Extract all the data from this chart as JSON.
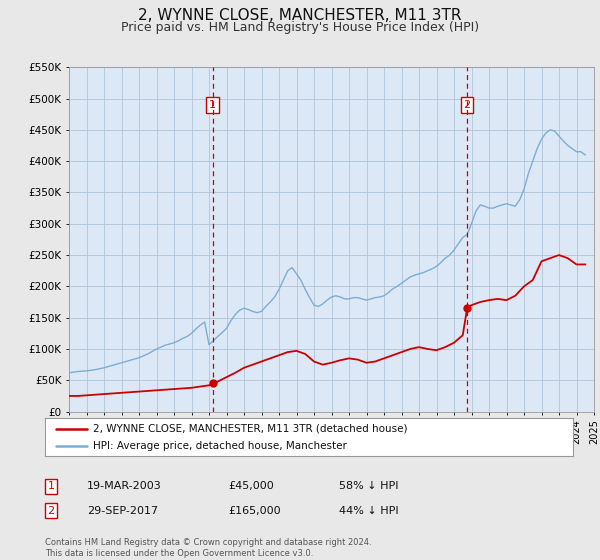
{
  "title": "2, WYNNE CLOSE, MANCHESTER, M11 3TR",
  "subtitle": "Price paid vs. HM Land Registry's House Price Index (HPI)",
  "title_fontsize": 11,
  "subtitle_fontsize": 9,
  "background_color": "#e8e8e8",
  "plot_bg_color": "#dce8f5",
  "grid_color": "#b0c4d8",
  "hpi_color": "#7aaed6",
  "price_color": "#cc0000",
  "ylim": [
    0,
    550000
  ],
  "yticks": [
    0,
    50000,
    100000,
    150000,
    200000,
    250000,
    300000,
    350000,
    400000,
    450000,
    500000,
    550000
  ],
  "ytick_labels": [
    "£0",
    "£50K",
    "£100K",
    "£150K",
    "£200K",
    "£250K",
    "£300K",
    "£350K",
    "£400K",
    "£450K",
    "£500K",
    "£550K"
  ],
  "xmin": 1995,
  "xmax": 2025,
  "vline1_x": 2003.21,
  "vline2_x": 2017.75,
  "sale1_y": 45000,
  "sale2_y": 165000,
  "sale1_date": "19-MAR-2003",
  "sale1_price": "£45,000",
  "sale1_hpi": "58% ↓ HPI",
  "sale2_date": "29-SEP-2017",
  "sale2_price": "£165,000",
  "sale2_hpi": "44% ↓ HPI",
  "legend_line1": "2, WYNNE CLOSE, MANCHESTER, M11 3TR (detached house)",
  "legend_line2": "HPI: Average price, detached house, Manchester",
  "footer": "Contains HM Land Registry data © Crown copyright and database right 2024.\nThis data is licensed under the Open Government Licence v3.0.",
  "hpi_data_x": [
    1995.0,
    1995.25,
    1995.5,
    1995.75,
    1996.0,
    1996.25,
    1996.5,
    1996.75,
    1997.0,
    1997.25,
    1997.5,
    1997.75,
    1998.0,
    1998.25,
    1998.5,
    1998.75,
    1999.0,
    1999.25,
    1999.5,
    1999.75,
    2000.0,
    2000.25,
    2000.5,
    2000.75,
    2001.0,
    2001.25,
    2001.5,
    2001.75,
    2002.0,
    2002.25,
    2002.5,
    2002.75,
    2003.0,
    2003.25,
    2003.5,
    2003.75,
    2004.0,
    2004.25,
    2004.5,
    2004.75,
    2005.0,
    2005.25,
    2005.5,
    2005.75,
    2006.0,
    2006.25,
    2006.5,
    2006.75,
    2007.0,
    2007.25,
    2007.5,
    2007.75,
    2008.0,
    2008.25,
    2008.5,
    2008.75,
    2009.0,
    2009.25,
    2009.5,
    2009.75,
    2010.0,
    2010.25,
    2010.5,
    2010.75,
    2011.0,
    2011.25,
    2011.5,
    2011.75,
    2012.0,
    2012.25,
    2012.5,
    2012.75,
    2013.0,
    2013.25,
    2013.5,
    2013.75,
    2014.0,
    2014.25,
    2014.5,
    2014.75,
    2015.0,
    2015.25,
    2015.5,
    2015.75,
    2016.0,
    2016.25,
    2016.5,
    2016.75,
    2017.0,
    2017.25,
    2017.5,
    2017.75,
    2018.0,
    2018.25,
    2018.5,
    2018.75,
    2019.0,
    2019.25,
    2019.5,
    2019.75,
    2020.0,
    2020.25,
    2020.5,
    2020.75,
    2021.0,
    2021.25,
    2021.5,
    2021.75,
    2022.0,
    2022.25,
    2022.5,
    2022.75,
    2023.0,
    2023.25,
    2023.5,
    2023.75,
    2024.0,
    2024.25,
    2024.5
  ],
  "hpi_data_y": [
    62000,
    63000,
    64000,
    64500,
    65000,
    66000,
    67000,
    68500,
    70000,
    72000,
    74000,
    76000,
    78000,
    80000,
    82000,
    84000,
    86000,
    89000,
    92000,
    96000,
    100000,
    103000,
    106000,
    108000,
    110000,
    113000,
    117000,
    120000,
    125000,
    132000,
    138000,
    143000,
    107000,
    113000,
    120000,
    126000,
    133000,
    145000,
    155000,
    162000,
    165000,
    163000,
    160000,
    158000,
    160000,
    168000,
    175000,
    183000,
    195000,
    210000,
    225000,
    230000,
    220000,
    210000,
    195000,
    182000,
    170000,
    168000,
    172000,
    178000,
    183000,
    185000,
    183000,
    180000,
    180000,
    182000,
    182000,
    180000,
    178000,
    180000,
    182000,
    183000,
    185000,
    190000,
    196000,
    200000,
    205000,
    210000,
    215000,
    218000,
    220000,
    222000,
    225000,
    228000,
    232000,
    238000,
    245000,
    250000,
    258000,
    268000,
    278000,
    283000,
    300000,
    320000,
    330000,
    328000,
    325000,
    325000,
    328000,
    330000,
    332000,
    330000,
    328000,
    338000,
    355000,
    380000,
    400000,
    420000,
    435000,
    445000,
    450000,
    448000,
    440000,
    432000,
    425000,
    420000,
    415000,
    415000,
    410000
  ],
  "price_data_x": [
    1995.0,
    1995.5,
    1996.0,
    1996.5,
    1997.0,
    1997.5,
    1998.0,
    1998.5,
    1999.0,
    1999.5,
    2000.0,
    2000.5,
    2001.0,
    2001.5,
    2002.0,
    2002.5,
    2003.0,
    2003.21,
    2003.5,
    2004.0,
    2004.5,
    2005.0,
    2005.5,
    2006.0,
    2006.5,
    2007.0,
    2007.5,
    2008.0,
    2008.5,
    2009.0,
    2009.5,
    2010.0,
    2010.5,
    2011.0,
    2011.5,
    2012.0,
    2012.5,
    2013.0,
    2013.5,
    2014.0,
    2014.5,
    2015.0,
    2015.5,
    2016.0,
    2016.5,
    2017.0,
    2017.5,
    2017.75,
    2018.0,
    2018.5,
    2019.0,
    2019.5,
    2020.0,
    2020.5,
    2021.0,
    2021.5,
    2022.0,
    2022.5,
    2023.0,
    2023.5,
    2024.0,
    2024.5
  ],
  "price_data_y": [
    25000,
    25000,
    26000,
    27000,
    28000,
    29000,
    30000,
    31000,
    32000,
    33000,
    34000,
    35000,
    36000,
    37000,
    38000,
    40000,
    42000,
    45000,
    48000,
    55000,
    62000,
    70000,
    75000,
    80000,
    85000,
    90000,
    95000,
    97000,
    92000,
    80000,
    75000,
    78000,
    82000,
    85000,
    83000,
    78000,
    80000,
    85000,
    90000,
    95000,
    100000,
    103000,
    100000,
    98000,
    103000,
    110000,
    122000,
    165000,
    170000,
    175000,
    178000,
    180000,
    178000,
    185000,
    200000,
    210000,
    240000,
    245000,
    250000,
    245000,
    235000,
    235000
  ]
}
